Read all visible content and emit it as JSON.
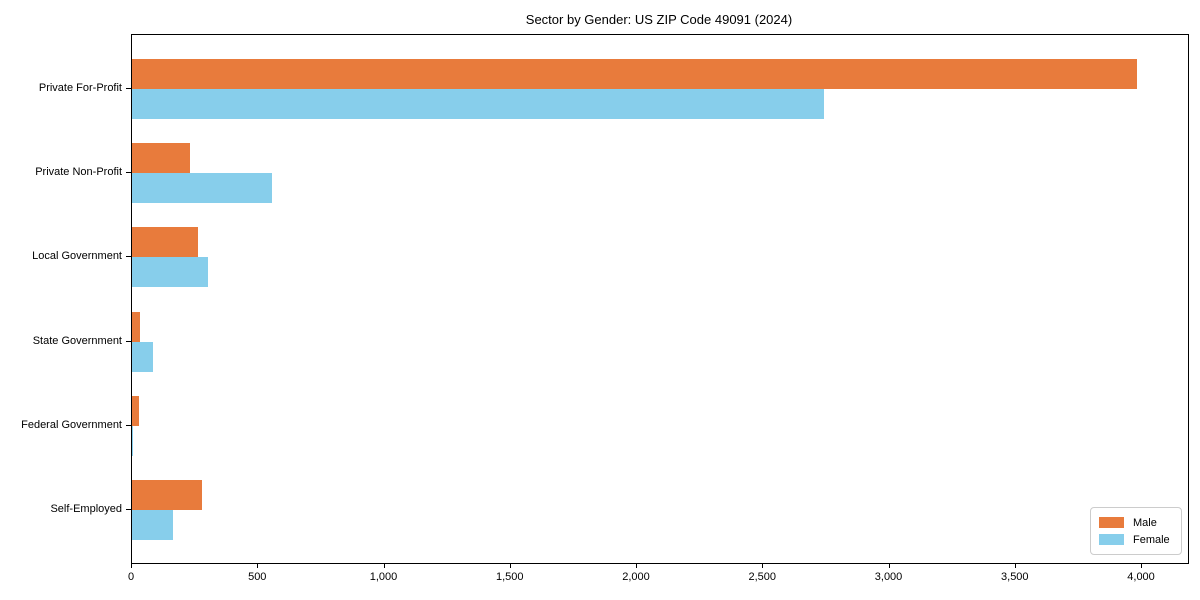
{
  "chart_data": {
    "type": "bar",
    "orientation": "horizontal",
    "title": "Sector by Gender: US ZIP Code 49091 (2024)",
    "xlabel": "",
    "ylabel": "",
    "categories": [
      "Private For-Profit",
      "Private Non-Profit",
      "Local Government",
      "State Government",
      "Federal Government",
      "Self-Employed"
    ],
    "series": [
      {
        "name": "Male",
        "color": "#E87B3C",
        "values": [
          3980,
          230,
          260,
          30,
          27,
          278
        ]
      },
      {
        "name": "Female",
        "color": "#87CEEB",
        "values": [
          2740,
          555,
          300,
          85,
          5,
          162
        ]
      }
    ],
    "xlim": [
      0,
      4182
    ],
    "xtick_values": [
      0,
      500,
      1000,
      1500,
      2000,
      2500,
      3000,
      3500,
      4000
    ],
    "xtick_labels": [
      "0",
      "500",
      "1,000",
      "1,500",
      "2,000",
      "2,500",
      "3,000",
      "3,500",
      "4,000"
    ],
    "grid": false,
    "legend_position": "lower right",
    "colors": {
      "spine": "#000000",
      "background": "#ffffff",
      "legend_border": "#cccccc"
    }
  }
}
